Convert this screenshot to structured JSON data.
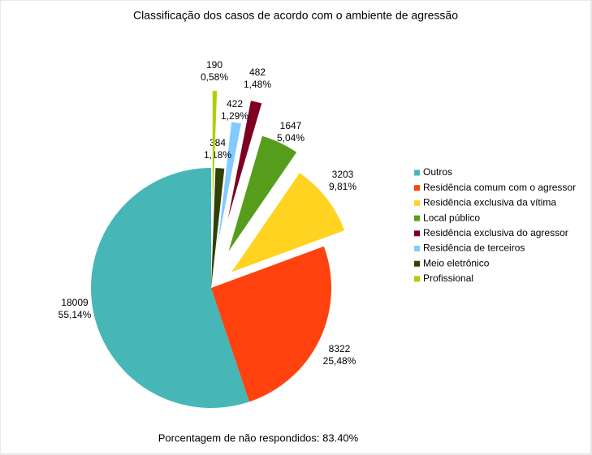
{
  "chart_data": {
    "type": "pie",
    "title": "Classificação dos casos de acordo com o ambiente de agressão",
    "categories": [
      "Outros",
      "Residência comum com o agressor",
      "Residência exclusiva da vítima",
      "Local público",
      "Residência exclusiva do agressor",
      "Residência de terceiros",
      "Meio eletrônico",
      "Profissional"
    ],
    "values": [
      18009,
      8322,
      3203,
      1647,
      482,
      422,
      384,
      190
    ],
    "percent_labels": [
      "55,14%",
      "25,48%",
      "9,81%",
      "5,04%",
      "1,48%",
      "1,29%",
      "1,18%",
      "0,58%"
    ],
    "colors": [
      "#46b7b6",
      "#ff420e",
      "#ffd320",
      "#579d1c",
      "#7e0021",
      "#83caff",
      "#314004",
      "#aecf00"
    ],
    "legend": "right",
    "footnote": "Porcentagem de não respondidos: 83.40%"
  }
}
